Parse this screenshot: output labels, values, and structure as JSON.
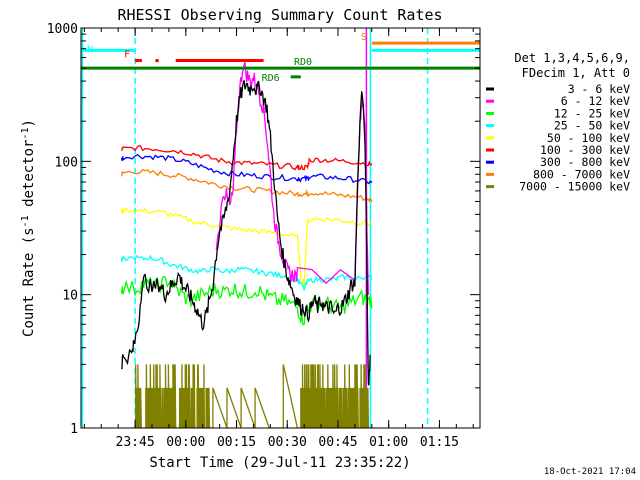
{
  "chart_data": {
    "type": "line",
    "title": "RHESSI Observing Summary Count Rates",
    "xlabel": "Start Time (29-Jul-11 23:35:22)",
    "ylabel": "Count Rate (s",
    "ylabel_sup": "-1",
    "ylabel_tail": " detector",
    "ylabel_tail_sup": "-1",
    "ylabel_close": ")",
    "yscale": "log",
    "ylim": [
      1,
      1000
    ],
    "xlim_minutes": [
      -16,
      102
    ],
    "x_ticks": [
      {
        "label": "23:45",
        "min": 0
      },
      {
        "label": "00:00",
        "min": 15
      },
      {
        "label": "00:15",
        "min": 30
      },
      {
        "label": "00:30",
        "min": 45
      },
      {
        "label": "00:45",
        "min": 60
      },
      {
        "label": "01:00",
        "min": 75
      },
      {
        "label": "01:15",
        "min": 90
      }
    ],
    "y_ticks": [
      {
        "label": "1",
        "value": 1
      },
      {
        "label": "10",
        "value": 10
      },
      {
        "label": "100",
        "value": 100
      },
      {
        "label": "1000",
        "value": 1000
      }
    ],
    "legend": {
      "header1": "Det 1,3,4,5,6,9,",
      "header2": "FDecim 1, Att 0",
      "entries": [
        {
          "label": "3 - 6 keV",
          "color": "#000000"
        },
        {
          "label": "6 - 12 keV",
          "color": "#ff00ff"
        },
        {
          "label": "12 - 25 keV",
          "color": "#00ff00"
        },
        {
          "label": "25 - 50 keV",
          "color": "#00ffff"
        },
        {
          "label": "50 - 100 keV",
          "color": "#ffff00"
        },
        {
          "label": "100 - 300 keV",
          "color": "#ff0000"
        },
        {
          "label": "300 - 800 keV",
          "color": "#0000ff"
        },
        {
          "label": "800 - 7000 keV",
          "color": "#ff7f00"
        },
        {
          "label": "7000 - 15000 keV",
          "color": "#808000"
        }
      ]
    },
    "series": [
      {
        "name": "3 - 6 keV",
        "color": "#000000",
        "x": [
          -4,
          -3.5,
          -1,
          -0.5,
          1,
          2,
          3,
          5,
          7,
          8,
          9,
          10,
          11,
          12,
          13,
          14,
          15,
          16,
          17,
          18,
          19,
          20,
          21,
          22,
          23,
          24,
          25,
          26,
          27,
          28,
          29,
          30,
          31,
          32,
          33,
          34,
          35,
          36,
          37,
          38,
          39,
          40,
          41,
          42,
          43,
          44,
          45,
          46,
          47,
          48,
          49,
          50,
          51,
          52,
          53,
          54,
          55,
          56,
          57,
          58,
          59,
          60,
          61,
          62,
          63,
          64,
          65,
          66,
          67,
          68,
          69,
          69.5
        ],
        "y": [
          3,
          3.5,
          3.5,
          4,
          6,
          12,
          13,
          11,
          12,
          11,
          10,
          11,
          12,
          13,
          14,
          12,
          11,
          10,
          9,
          8,
          7,
          6,
          7,
          9,
          12,
          20,
          30,
          35,
          45,
          60,
          110,
          200,
          300,
          360,
          380,
          350,
          380,
          340,
          360,
          300,
          250,
          150,
          80,
          40,
          25,
          18,
          14,
          12,
          10,
          9,
          8,
          8,
          7,
          8,
          9,
          8,
          9,
          8,
          8,
          8,
          7,
          8,
          8,
          9,
          10,
          12,
          12,
          100,
          350,
          150,
          2,
          3.5
        ]
      },
      {
        "name": "6 - 12 keV",
        "color": "#ff00ff",
        "x": [
          24,
          26,
          27,
          28,
          29,
          30,
          31,
          32,
          33,
          34,
          35,
          36,
          37,
          38,
          39,
          40,
          41,
          42,
          43,
          44,
          45,
          46,
          47,
          48,
          65,
          66,
          67,
          68,
          68.5,
          69
        ],
        "y": [
          20,
          60,
          55,
          45,
          60,
          180,
          350,
          550,
          450,
          400,
          420,
          380,
          300,
          250,
          150,
          80,
          40,
          28,
          22,
          18,
          15,
          14,
          14,
          14,
          14,
          100,
          320,
          200,
          40,
          10
        ]
      },
      {
        "name": "12 - 25 keV",
        "color": "#00ff00",
        "x": [
          -4,
          -3.5,
          0,
          2,
          4,
          6,
          8,
          10,
          12,
          14,
          16,
          18,
          20,
          22,
          24,
          26,
          28,
          30,
          32,
          34,
          36,
          38,
          40,
          42,
          44,
          46,
          48,
          49,
          50,
          51,
          53,
          55,
          57,
          59,
          61,
          63,
          65,
          67,
          69,
          70
        ],
        "y": [
          11,
          11.5,
          11,
          12,
          12,
          11.5,
          12,
          13,
          11,
          10,
          9,
          9.5,
          10,
          10.5,
          11,
          10.5,
          11,
          11,
          10.5,
          10.5,
          11,
          10,
          9.5,
          9,
          9,
          8.5,
          8,
          7,
          6.5,
          8,
          8.5,
          8.5,
          8.5,
          8,
          8,
          8.5,
          9,
          9.5,
          9,
          9
        ]
      },
      {
        "name": "25 - 50 keV",
        "color": "#00ffff",
        "x": [
          -4,
          -3.5,
          0,
          2,
          4,
          6,
          8,
          10,
          12,
          14,
          16,
          18,
          20,
          22,
          24,
          26,
          28,
          30,
          32,
          34,
          36,
          38,
          40,
          42,
          44,
          46,
          48,
          49,
          50,
          51,
          53,
          55,
          57,
          59,
          61,
          63,
          65,
          67,
          69,
          70
        ],
        "y": [
          18,
          18.5,
          19,
          18.5,
          19,
          18.5,
          18,
          17,
          16.5,
          16,
          15.5,
          15,
          15,
          15.5,
          15.5,
          15,
          15,
          15.5,
          15.5,
          15,
          15,
          14.5,
          14.5,
          14,
          14,
          13.5,
          13,
          12,
          11,
          12.5,
          13,
          13,
          13,
          13,
          13.5,
          13.5,
          13,
          13.5,
          13.5,
          13.5
        ]
      },
      {
        "name": "50 - 100 keV",
        "color": "#ffff00",
        "x": [
          -4,
          -3.5,
          0,
          3,
          6,
          9,
          12,
          15,
          18,
          21,
          24,
          27,
          30,
          33,
          36,
          39,
          42,
          45,
          48,
          49,
          50,
          51,
          53,
          56,
          59,
          62,
          65,
          68,
          70
        ],
        "y": [
          42,
          43,
          43,
          42.5,
          42,
          41,
          39,
          37,
          35,
          34,
          33,
          32,
          31,
          30.5,
          30,
          29.5,
          29,
          28,
          27,
          14,
          12,
          36,
          37,
          37,
          36.5,
          36,
          35,
          34.5,
          34
        ]
      },
      {
        "name": "100 - 300 keV",
        "color": "#ff0000",
        "x": [
          -4,
          -3.5,
          0,
          3,
          6,
          9,
          12,
          15,
          18,
          21,
          24,
          27,
          30,
          33,
          36,
          39,
          42,
          45,
          48,
          48.5,
          50,
          51,
          51.5,
          54,
          57,
          60,
          63,
          66,
          69,
          70
        ],
        "y": [
          122,
          124,
          126,
          125,
          124,
          122,
          120,
          117,
          113,
          108,
          103,
          100,
          98,
          97,
          96,
          95,
          93,
          92,
          90,
          90,
          90,
          90,
          102,
          103,
          102,
          101,
          100,
          98,
          96,
          95
        ]
      },
      {
        "name": "300 - 800 keV",
        "color": "#0000ff",
        "x": [
          -4,
          -3.5,
          0,
          3,
          6,
          9,
          12,
          15,
          18,
          21,
          24,
          27,
          30,
          33,
          36,
          39,
          42,
          45,
          48,
          48.5,
          50,
          51,
          51.5,
          54,
          57,
          60,
          63,
          66,
          69,
          70
        ],
        "y": [
          104,
          107,
          110,
          109,
          108,
          106,
          103,
          99,
          94,
          89,
          85,
          82,
          80,
          79,
          78,
          77,
          76,
          75,
          74,
          74,
          74,
          74,
          76,
          77,
          76,
          75,
          74,
          72,
          70,
          69
        ]
      },
      {
        "name": "800 - 7000 keV",
        "color": "#ff7f00",
        "x": [
          -4,
          -3.5,
          0,
          3,
          6,
          9,
          12,
          15,
          18,
          21,
          24,
          27,
          30,
          33,
          36,
          39,
          42,
          45,
          48,
          48.5,
          50,
          51,
          51.5,
          54,
          57,
          60,
          63,
          66,
          69,
          70
        ],
        "y": [
          80,
          82,
          84,
          83,
          82,
          80,
          78,
          76,
          73,
          70,
          67,
          65,
          63,
          62,
          61,
          60,
          59,
          58,
          57,
          57,
          57,
          57,
          58,
          58,
          57,
          56,
          55,
          54,
          52,
          51
        ]
      },
      {
        "name": "7000 - 15000 keV",
        "color": "#808000",
        "x": [
          -1,
          0,
          1,
          2,
          3,
          4,
          5,
          6,
          7,
          8,
          9,
          10,
          11,
          12,
          13,
          14,
          15,
          16,
          17,
          18,
          19,
          20,
          21,
          22,
          23,
          48,
          49,
          50,
          51,
          52,
          53,
          54,
          55,
          56,
          57,
          58,
          59,
          60,
          61,
          62,
          63,
          64,
          65,
          66,
          67,
          68,
          69
        ],
        "y": [
          1,
          2,
          2,
          1,
          2,
          2,
          3,
          2,
          2,
          3,
          2,
          2,
          2,
          1,
          2,
          3,
          2,
          2,
          2,
          3,
          2,
          2,
          2,
          1,
          2,
          1,
          2,
          2,
          2,
          3,
          2,
          2,
          2,
          3,
          2,
          2,
          2,
          3,
          2,
          2,
          2,
          2,
          2,
          2,
          2,
          2,
          1
        ]
      }
    ],
    "flags": [
      {
        "label": "N",
        "color": "#00ffff",
        "x": [
          -16,
          0
        ],
        "y": 680
      },
      {
        "label": "F",
        "color": "#ff0000",
        "segments": [
          [
            0,
            2
          ],
          [
            6,
            7
          ],
          [
            12,
            38
          ]
        ],
        "y": 570
      },
      {
        "label": "RD0",
        "color": "#008000",
        "x": [
          -16,
          102
        ],
        "y": 500,
        "label_min": 47
      },
      {
        "label": "RD6",
        "color": "#008000",
        "x": [
          46,
          49
        ],
        "y": 430
      },
      {
        "label": "S",
        "color": "#ff7f00",
        "x": [
          70,
          102
        ],
        "y": 770
      },
      {
        "label": "",
        "color": "#00ffff",
        "x": [
          70,
          102
        ],
        "y": 680
      }
    ],
    "vertical_lines": [
      {
        "color": "#00ffff",
        "dashed": false,
        "min": -15.6
      },
      {
        "color": "#00ffff",
        "dashed": true,
        "min": 0
      },
      {
        "color": "#00ffff",
        "dashed": false,
        "min": 69.6
      },
      {
        "color": "#ff00ff",
        "dashed": false,
        "min": 68.4
      },
      {
        "color": "#00ffff",
        "dashed": true,
        "min": 86.5
      }
    ],
    "timestamp": "18-Oct-2021 17:04"
  }
}
